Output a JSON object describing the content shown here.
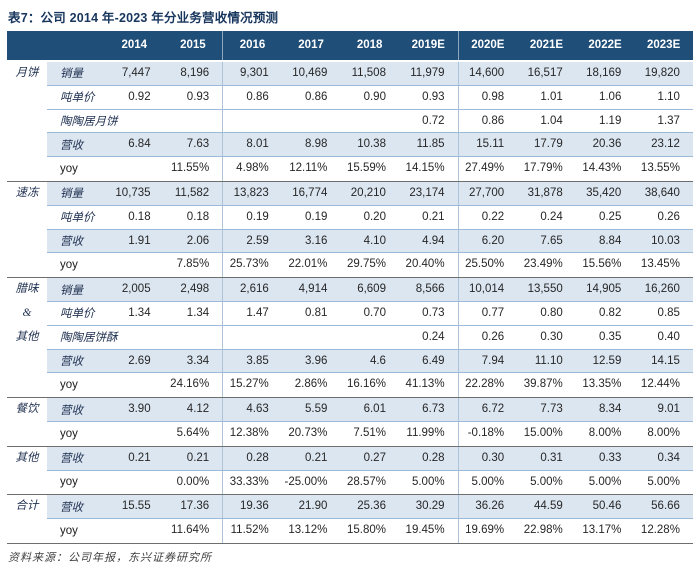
{
  "title": "表7：公司 2014 年-2023 年分业务营收情况预测",
  "header": {
    "years": [
      "2014",
      "2015",
      "2016",
      "2017",
      "2018",
      "2019E",
      "2020E",
      "2021E",
      "2022E",
      "2023E"
    ]
  },
  "groups": [
    {
      "label": "月饼",
      "rows": [
        {
          "label": "销量",
          "shaded": true,
          "values": [
            "7,447",
            "8,196",
            "9,301",
            "10,469",
            "11,508",
            "11,979",
            "14,600",
            "16,517",
            "18,169",
            "19,820"
          ]
        },
        {
          "label": "吨单价",
          "shaded": false,
          "values": [
            "0.92",
            "0.93",
            "0.86",
            "0.86",
            "0.90",
            "0.93",
            "0.98",
            "1.01",
            "1.06",
            "1.10"
          ]
        },
        {
          "label": "陶陶居月饼",
          "shaded": false,
          "values": [
            "",
            "",
            "",
            "",
            "",
            "0.72",
            "0.86",
            "1.04",
            "1.19",
            "1.37"
          ]
        },
        {
          "label": "营收",
          "shaded": true,
          "values": [
            "6.84",
            "7.63",
            "8.01",
            "8.98",
            "10.38",
            "11.85",
            "15.11",
            "17.79",
            "20.36",
            "23.12"
          ]
        },
        {
          "label": "yoy",
          "shaded": false,
          "values": [
            "",
            "11.55%",
            "4.98%",
            "12.11%",
            "15.59%",
            "14.15%",
            "27.49%",
            "17.79%",
            "14.43%",
            "13.55%"
          ]
        }
      ]
    },
    {
      "label": "速冻",
      "rows": [
        {
          "label": "销量",
          "shaded": true,
          "values": [
            "10,735",
            "11,582",
            "13,823",
            "16,774",
            "20,210",
            "23,174",
            "27,700",
            "31,878",
            "35,420",
            "38,640"
          ]
        },
        {
          "label": "吨单价",
          "shaded": false,
          "values": [
            "0.18",
            "0.18",
            "0.19",
            "0.19",
            "0.20",
            "0.21",
            "0.22",
            "0.24",
            "0.25",
            "0.26"
          ]
        },
        {
          "label": "营收",
          "shaded": true,
          "values": [
            "1.91",
            "2.06",
            "2.59",
            "3.16",
            "4.10",
            "4.94",
            "6.20",
            "7.65",
            "8.84",
            "10.03"
          ]
        },
        {
          "label": "yoy",
          "shaded": false,
          "values": [
            "",
            "7.85%",
            "25.73%",
            "22.01%",
            "29.75%",
            "20.40%",
            "25.50%",
            "23.49%",
            "15.56%",
            "13.45%"
          ]
        }
      ]
    },
    {
      "label": "腊味\n&\n其他",
      "rows": [
        {
          "label": "销量",
          "shaded": true,
          "values": [
            "2,005",
            "2,498",
            "2,616",
            "4,914",
            "6,609",
            "8,566",
            "10,014",
            "13,550",
            "14,905",
            "16,260"
          ]
        },
        {
          "label": "吨单价",
          "shaded": false,
          "values": [
            "1.34",
            "1.34",
            "1.47",
            "0.81",
            "0.70",
            "0.73",
            "0.77",
            "0.80",
            "0.82",
            "0.85"
          ]
        },
        {
          "label": "陶陶居饼酥",
          "shaded": false,
          "values": [
            "",
            "",
            "",
            "",
            "",
            "0.24",
            "0.26",
            "0.30",
            "0.35",
            "0.40"
          ]
        },
        {
          "label": "营收",
          "shaded": true,
          "values": [
            "2.69",
            "3.34",
            "3.85",
            "3.96",
            "4.6",
            "6.49",
            "7.94",
            "11.10",
            "12.59",
            "14.15"
          ]
        },
        {
          "label": "yoy",
          "shaded": false,
          "values": [
            "",
            "24.16%",
            "15.27%",
            "2.86%",
            "16.16%",
            "41.13%",
            "22.28%",
            "39.87%",
            "13.35%",
            "12.44%"
          ]
        }
      ]
    },
    {
      "label": "餐饮",
      "rows": [
        {
          "label": "营收",
          "shaded": true,
          "values": [
            "3.90",
            "4.12",
            "4.63",
            "5.59",
            "6.01",
            "6.73",
            "6.72",
            "7.73",
            "8.34",
            "9.01"
          ]
        },
        {
          "label": "yoy",
          "shaded": false,
          "values": [
            "",
            "5.64%",
            "12.38%",
            "20.73%",
            "7.51%",
            "11.99%",
            "-0.18%",
            "15.00%",
            "8.00%",
            "8.00%"
          ]
        }
      ]
    },
    {
      "label": "其他",
      "rows": [
        {
          "label": "营收",
          "shaded": true,
          "values": [
            "0.21",
            "0.21",
            "0.28",
            "0.21",
            "0.27",
            "0.28",
            "0.30",
            "0.31",
            "0.33",
            "0.34"
          ]
        },
        {
          "label": "yoy",
          "shaded": false,
          "values": [
            "",
            "0.00%",
            "33.33%",
            "-25.00%",
            "28.57%",
            "5.00%",
            "5.00%",
            "5.00%",
            "5.00%",
            "5.00%"
          ]
        }
      ]
    },
    {
      "label": "合计",
      "rows": [
        {
          "label": "营收",
          "shaded": true,
          "values": [
            "15.55",
            "17.36",
            "19.36",
            "21.90",
            "25.36",
            "30.29",
            "36.26",
            "44.59",
            "50.46",
            "56.66"
          ]
        },
        {
          "label": "yoy",
          "shaded": false,
          "values": [
            "",
            "11.64%",
            "11.52%",
            "13.12%",
            "15.80%",
            "19.45%",
            "19.69%",
            "22.98%",
            "13.17%",
            "12.28%"
          ]
        }
      ]
    }
  ],
  "footer": "资料来源：公司年报，东兴证券研究所",
  "colors": {
    "header_bg": "#1F4E79",
    "header_text": "#FFFFFF",
    "stripe": "#DCE6F1",
    "row_line": "#9DB9DA",
    "group_line": "#6E6E6E",
    "divider": "#AFC3D8",
    "title_text": "#17365D",
    "label_text": "#1F3050",
    "number_text": "#262626",
    "footer_text": "#3F3F3F"
  }
}
